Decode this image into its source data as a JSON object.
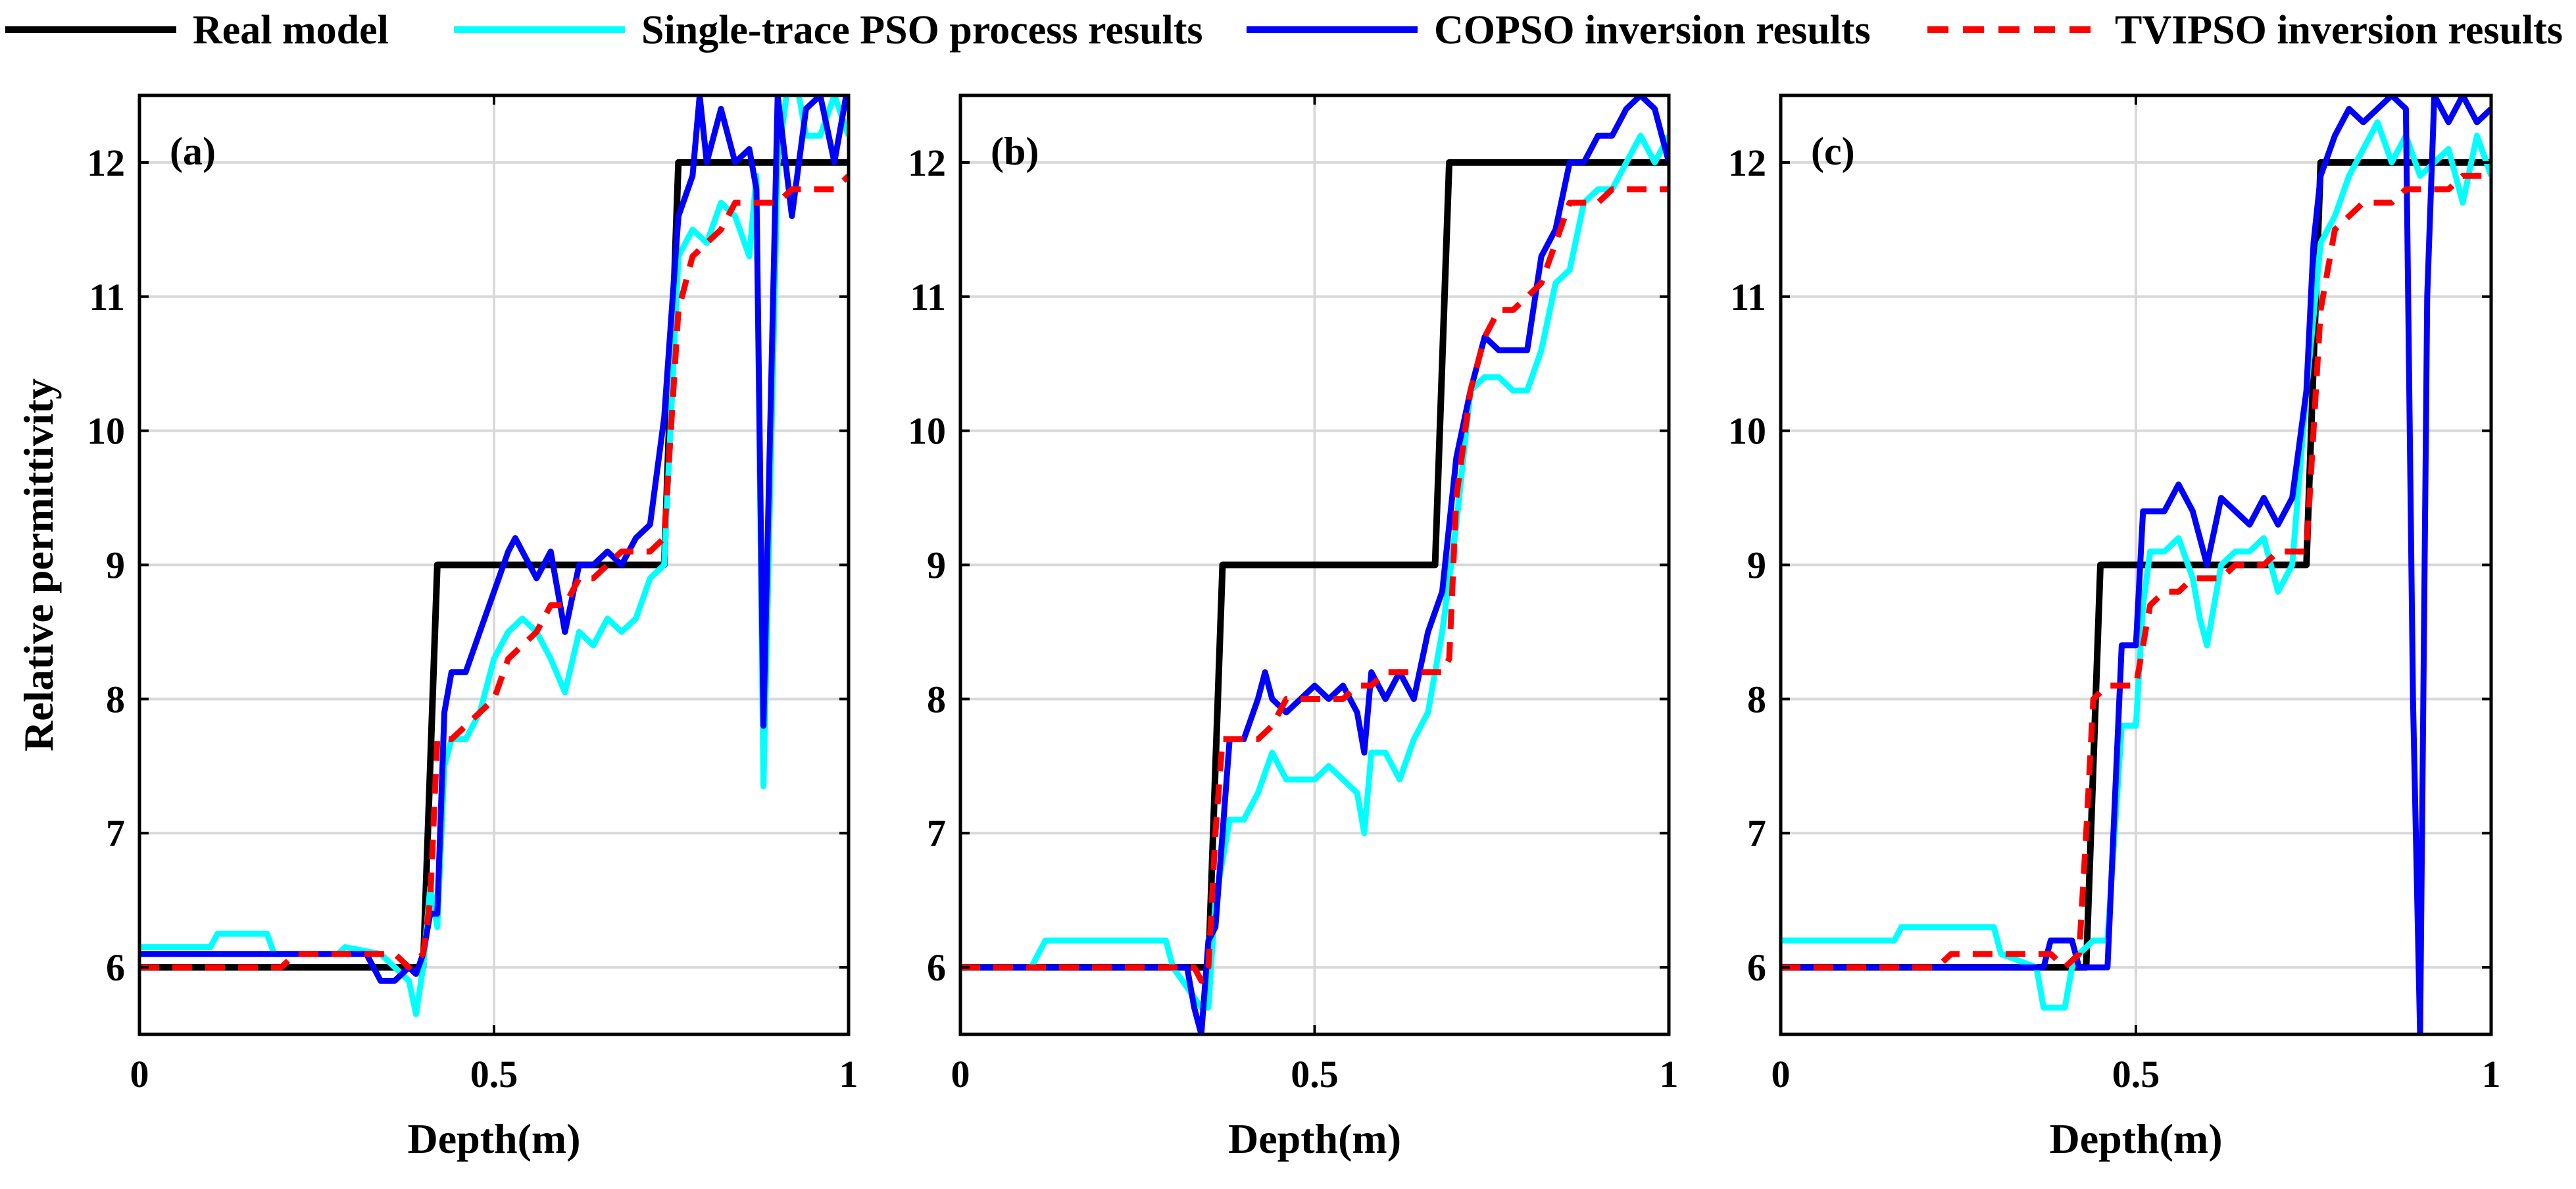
{
  "legend": [
    {
      "key": "real",
      "label": "Real model",
      "color": "#000000",
      "dash": false
    },
    {
      "key": "pso",
      "label": "Single-trace PSO process results",
      "color": "#00FFFF",
      "dash": false
    },
    {
      "key": "copso",
      "label": "COPSO inversion results",
      "color": "#0000FF",
      "dash": false
    },
    {
      "key": "tvipso",
      "label": "TVIPSO inversion results",
      "color": "#FF0000",
      "dash": true
    }
  ],
  "chart_data": [
    {
      "type": "line",
      "panel_label": "(a)",
      "xlabel": "Depth(m)",
      "ylabel": "Relative permittivity",
      "xlim": [
        0,
        1
      ],
      "ylim": [
        5.5,
        12.5
      ],
      "xticks": [
        0,
        0.5,
        1
      ],
      "xtick_labels": [
        "0",
        "0.5",
        "1"
      ],
      "yticks": [
        6,
        7,
        8,
        9,
        10,
        11,
        12
      ],
      "ytick_labels": [
        "6",
        "7",
        "8",
        "9",
        "10",
        "11",
        "12"
      ],
      "grid": true,
      "series": [
        {
          "name": "Real model",
          "x": [
            0,
            0.4,
            0.42,
            0.74,
            0.76,
            1
          ],
          "y": [
            6,
            6,
            9,
            9,
            12,
            12
          ]
        },
        {
          "name": "Single-trace PSO process results",
          "x": [
            0,
            0.1,
            0.11,
            0.18,
            0.19,
            0.28,
            0.29,
            0.34,
            0.36,
            0.38,
            0.39,
            0.4,
            0.41,
            0.42,
            0.43,
            0.44,
            0.46,
            0.48,
            0.5,
            0.52,
            0.54,
            0.56,
            0.58,
            0.6,
            0.62,
            0.64,
            0.66,
            0.68,
            0.7,
            0.72,
            0.74,
            0.76,
            0.78,
            0.8,
            0.82,
            0.84,
            0.86,
            0.87,
            0.88,
            0.9,
            0.92,
            0.94,
            0.96,
            0.98,
            1
          ],
          "y": [
            6.15,
            6.15,
            6.25,
            6.25,
            6.1,
            6.1,
            6.15,
            6.1,
            6.0,
            5.9,
            5.65,
            6.0,
            6.6,
            6.3,
            7.5,
            7.7,
            7.7,
            7.9,
            8.3,
            8.5,
            8.6,
            8.5,
            8.3,
            8.05,
            8.5,
            8.4,
            8.6,
            8.5,
            8.6,
            8.9,
            9.0,
            11.3,
            11.5,
            11.4,
            11.7,
            11.6,
            11.3,
            11.9,
            7.35,
            12.0,
            12.8,
            12.2,
            12.2,
            12.5,
            12.2
          ]
        },
        {
          "name": "COPSO inversion results",
          "x": [
            0,
            0.3,
            0.32,
            0.34,
            0.36,
            0.38,
            0.39,
            0.4,
            0.41,
            0.42,
            0.43,
            0.44,
            0.46,
            0.48,
            0.5,
            0.52,
            0.53,
            0.54,
            0.56,
            0.58,
            0.6,
            0.62,
            0.64,
            0.66,
            0.68,
            0.7,
            0.72,
            0.74,
            0.76,
            0.78,
            0.79,
            0.8,
            0.82,
            0.84,
            0.86,
            0.87,
            0.88,
            0.9,
            0.92,
            0.94,
            0.96,
            0.98,
            1
          ],
          "y": [
            6.1,
            6.1,
            6.1,
            5.9,
            5.9,
            6.0,
            5.95,
            6.1,
            6.4,
            6.4,
            7.9,
            8.2,
            8.2,
            8.5,
            8.8,
            9.1,
            9.2,
            9.1,
            8.9,
            9.1,
            8.5,
            9.0,
            9.0,
            9.1,
            9.0,
            9.2,
            9.3,
            10.1,
            11.6,
            11.9,
            12.5,
            12.0,
            12.4,
            12.0,
            12.1,
            11.8,
            7.8,
            12.5,
            11.6,
            12.4,
            12.5,
            12.0,
            12.6
          ]
        },
        {
          "name": "TVIPSO inversion results",
          "x": [
            0,
            0.2,
            0.22,
            0.36,
            0.38,
            0.4,
            0.41,
            0.42,
            0.44,
            0.46,
            0.48,
            0.5,
            0.52,
            0.54,
            0.56,
            0.58,
            0.6,
            0.62,
            0.64,
            0.66,
            0.68,
            0.7,
            0.72,
            0.74,
            0.76,
            0.78,
            0.8,
            0.82,
            0.84,
            0.86,
            0.88,
            0.9,
            0.92,
            0.94,
            0.96,
            0.98,
            1
          ],
          "y": [
            6.0,
            6.0,
            6.1,
            6.1,
            6.0,
            6.1,
            6.5,
            7.7,
            7.7,
            7.8,
            7.9,
            8.0,
            8.3,
            8.4,
            8.5,
            8.7,
            8.7,
            8.9,
            8.9,
            9.0,
            9.1,
            9.1,
            9.1,
            9.2,
            10.9,
            11.3,
            11.4,
            11.5,
            11.7,
            11.7,
            11.7,
            11.7,
            11.8,
            11.8,
            11.8,
            11.8,
            11.9
          ]
        }
      ]
    },
    {
      "type": "line",
      "panel_label": "(b)",
      "xlabel": "Depth(m)",
      "ylabel": "",
      "xlim": [
        0,
        1
      ],
      "ylim": [
        5.5,
        12.5
      ],
      "xticks": [
        0,
        0.5,
        1
      ],
      "xtick_labels": [
        "0",
        "0.5",
        "1"
      ],
      "yticks": [
        6,
        7,
        8,
        9,
        10,
        11,
        12
      ],
      "ytick_labels": [
        "6",
        "7",
        "8",
        "9",
        "10",
        "11",
        "12"
      ],
      "grid": true,
      "series": [
        {
          "name": "Real model",
          "x": [
            0,
            0.35,
            0.37,
            0.67,
            0.69,
            1
          ],
          "y": [
            6,
            6,
            9,
            9,
            12,
            12
          ]
        },
        {
          "name": "Single-trace PSO process results",
          "x": [
            0,
            0.1,
            0.12,
            0.29,
            0.3,
            0.34,
            0.35,
            0.36,
            0.37,
            0.38,
            0.4,
            0.42,
            0.44,
            0.46,
            0.48,
            0.5,
            0.52,
            0.54,
            0.56,
            0.57,
            0.58,
            0.6,
            0.62,
            0.64,
            0.66,
            0.68,
            0.7,
            0.72,
            0.74,
            0.76,
            0.78,
            0.8,
            0.82,
            0.84,
            0.86,
            0.88,
            0.9,
            0.92,
            0.94,
            0.96,
            0.98,
            1
          ],
          "y": [
            6.0,
            6.0,
            6.2,
            6.2,
            6.0,
            5.7,
            5.7,
            6.5,
            6.8,
            7.1,
            7.1,
            7.3,
            7.6,
            7.4,
            7.4,
            7.4,
            7.5,
            7.4,
            7.3,
            7.0,
            7.6,
            7.6,
            7.4,
            7.7,
            7.9,
            8.5,
            9.3,
            10.3,
            10.4,
            10.4,
            10.3,
            10.3,
            10.6,
            11.1,
            11.2,
            11.7,
            11.8,
            11.8,
            12.0,
            12.2,
            12.0,
            12.2
          ]
        },
        {
          "name": "COPSO inversion results",
          "x": [
            0,
            0.32,
            0.33,
            0.34,
            0.35,
            0.36,
            0.37,
            0.38,
            0.4,
            0.42,
            0.43,
            0.44,
            0.46,
            0.48,
            0.5,
            0.52,
            0.54,
            0.56,
            0.57,
            0.58,
            0.6,
            0.62,
            0.64,
            0.66,
            0.68,
            0.7,
            0.72,
            0.74,
            0.76,
            0.78,
            0.8,
            0.82,
            0.84,
            0.86,
            0.88,
            0.9,
            0.92,
            0.94,
            0.96,
            0.98,
            1
          ],
          "y": [
            6.0,
            6.0,
            5.7,
            5.5,
            6.2,
            6.3,
            7.0,
            7.7,
            7.7,
            8.0,
            8.2,
            8.0,
            7.9,
            8.0,
            8.1,
            8.0,
            8.1,
            7.9,
            7.6,
            8.2,
            8.0,
            8.2,
            8.0,
            8.5,
            8.8,
            9.8,
            10.3,
            10.7,
            10.6,
            10.6,
            10.6,
            11.3,
            11.5,
            12.0,
            12.0,
            12.2,
            12.2,
            12.4,
            12.5,
            12.4,
            12.0
          ]
        },
        {
          "name": "TVIPSO inversion results",
          "x": [
            0,
            0.33,
            0.34,
            0.35,
            0.36,
            0.37,
            0.38,
            0.4,
            0.42,
            0.44,
            0.46,
            0.48,
            0.5,
            0.52,
            0.54,
            0.56,
            0.58,
            0.6,
            0.62,
            0.64,
            0.66,
            0.68,
            0.69,
            0.7,
            0.72,
            0.74,
            0.76,
            0.78,
            0.8,
            0.82,
            0.84,
            0.86,
            0.88,
            0.9,
            0.92,
            0.94,
            0.96,
            0.98,
            1
          ],
          "y": [
            6.0,
            6.0,
            5.9,
            6.0,
            7.0,
            7.7,
            7.7,
            7.7,
            7.7,
            7.8,
            8.0,
            8.0,
            8.0,
            8.0,
            8.0,
            8.1,
            8.1,
            8.2,
            8.2,
            8.2,
            8.2,
            8.2,
            8.3,
            9.5,
            10.3,
            10.7,
            10.9,
            10.9,
            11.0,
            11.1,
            11.4,
            11.7,
            11.7,
            11.7,
            11.8,
            11.8,
            11.8,
            11.8,
            11.8
          ]
        }
      ]
    },
    {
      "type": "line",
      "panel_label": "(c)",
      "xlabel": "Depth(m)",
      "ylabel": "",
      "xlim": [
        0,
        1
      ],
      "ylim": [
        5.5,
        12.5
      ],
      "xticks": [
        0,
        0.5,
        1
      ],
      "xtick_labels": [
        "0",
        "0.5",
        "1"
      ],
      "yticks": [
        6,
        7,
        8,
        9,
        10,
        11,
        12
      ],
      "ytick_labels": [
        "6",
        "7",
        "8",
        "9",
        "10",
        "11",
        "12"
      ],
      "grid": true,
      "series": [
        {
          "name": "Real model",
          "x": [
            0,
            0.43,
            0.45,
            0.74,
            0.76,
            1
          ],
          "y": [
            6,
            6,
            9,
            9,
            12,
            12
          ]
        },
        {
          "name": "Single-trace PSO process results",
          "x": [
            0,
            0.16,
            0.17,
            0.3,
            0.31,
            0.36,
            0.37,
            0.4,
            0.41,
            0.42,
            0.44,
            0.46,
            0.48,
            0.5,
            0.51,
            0.52,
            0.54,
            0.56,
            0.58,
            0.59,
            0.6,
            0.62,
            0.64,
            0.66,
            0.68,
            0.7,
            0.72,
            0.74,
            0.76,
            0.78,
            0.8,
            0.82,
            0.84,
            0.86,
            0.88,
            0.9,
            0.92,
            0.94,
            0.96,
            0.98,
            1
          ],
          "y": [
            6.2,
            6.2,
            6.3,
            6.3,
            6.1,
            6.0,
            5.7,
            5.7,
            6.0,
            6.1,
            6.2,
            6.2,
            7.8,
            7.8,
            8.7,
            9.1,
            9.1,
            9.2,
            8.9,
            8.6,
            8.4,
            9.0,
            9.1,
            9.1,
            9.2,
            8.8,
            9.0,
            10.3,
            11.4,
            11.6,
            11.9,
            12.1,
            12.3,
            12.0,
            12.2,
            11.9,
            12.0,
            12.1,
            11.7,
            12.2,
            11.9
          ]
        },
        {
          "name": "COPSO inversion results",
          "x": [
            0,
            0.37,
            0.38,
            0.41,
            0.42,
            0.44,
            0.46,
            0.48,
            0.5,
            0.51,
            0.52,
            0.54,
            0.56,
            0.58,
            0.6,
            0.62,
            0.64,
            0.66,
            0.68,
            0.7,
            0.72,
            0.74,
            0.75,
            0.76,
            0.78,
            0.8,
            0.82,
            0.84,
            0.86,
            0.88,
            0.89,
            0.9,
            0.91,
            0.92,
            0.94,
            0.96,
            0.98,
            1
          ],
          "y": [
            6.0,
            6.0,
            6.2,
            6.2,
            6.0,
            6.0,
            6.0,
            8.4,
            8.4,
            9.4,
            9.4,
            9.4,
            9.6,
            9.4,
            9.0,
            9.5,
            9.4,
            9.3,
            9.5,
            9.3,
            9.5,
            10.3,
            11.4,
            11.9,
            12.2,
            12.4,
            12.3,
            12.4,
            12.5,
            12.4,
            8.0,
            5.5,
            11.0,
            12.5,
            12.3,
            12.5,
            12.3,
            12.4
          ]
        },
        {
          "name": "TVIPSO inversion results",
          "x": [
            0,
            0.22,
            0.24,
            0.38,
            0.4,
            0.42,
            0.43,
            0.44,
            0.46,
            0.48,
            0.5,
            0.52,
            0.54,
            0.56,
            0.58,
            0.6,
            0.62,
            0.64,
            0.66,
            0.68,
            0.7,
            0.72,
            0.74,
            0.76,
            0.78,
            0.8,
            0.82,
            0.84,
            0.86,
            0.88,
            0.9,
            0.92,
            0.94,
            0.96,
            0.98,
            1
          ],
          "y": [
            6.0,
            6.0,
            6.1,
            6.1,
            6.0,
            6.1,
            7.0,
            8.0,
            8.1,
            8.1,
            8.1,
            8.7,
            8.8,
            8.8,
            8.9,
            8.9,
            8.9,
            9.0,
            9.0,
            9.0,
            9.1,
            9.1,
            9.1,
            10.9,
            11.5,
            11.6,
            11.7,
            11.7,
            11.7,
            11.8,
            11.8,
            11.8,
            11.8,
            11.9,
            11.9,
            11.9
          ]
        }
      ]
    }
  ]
}
